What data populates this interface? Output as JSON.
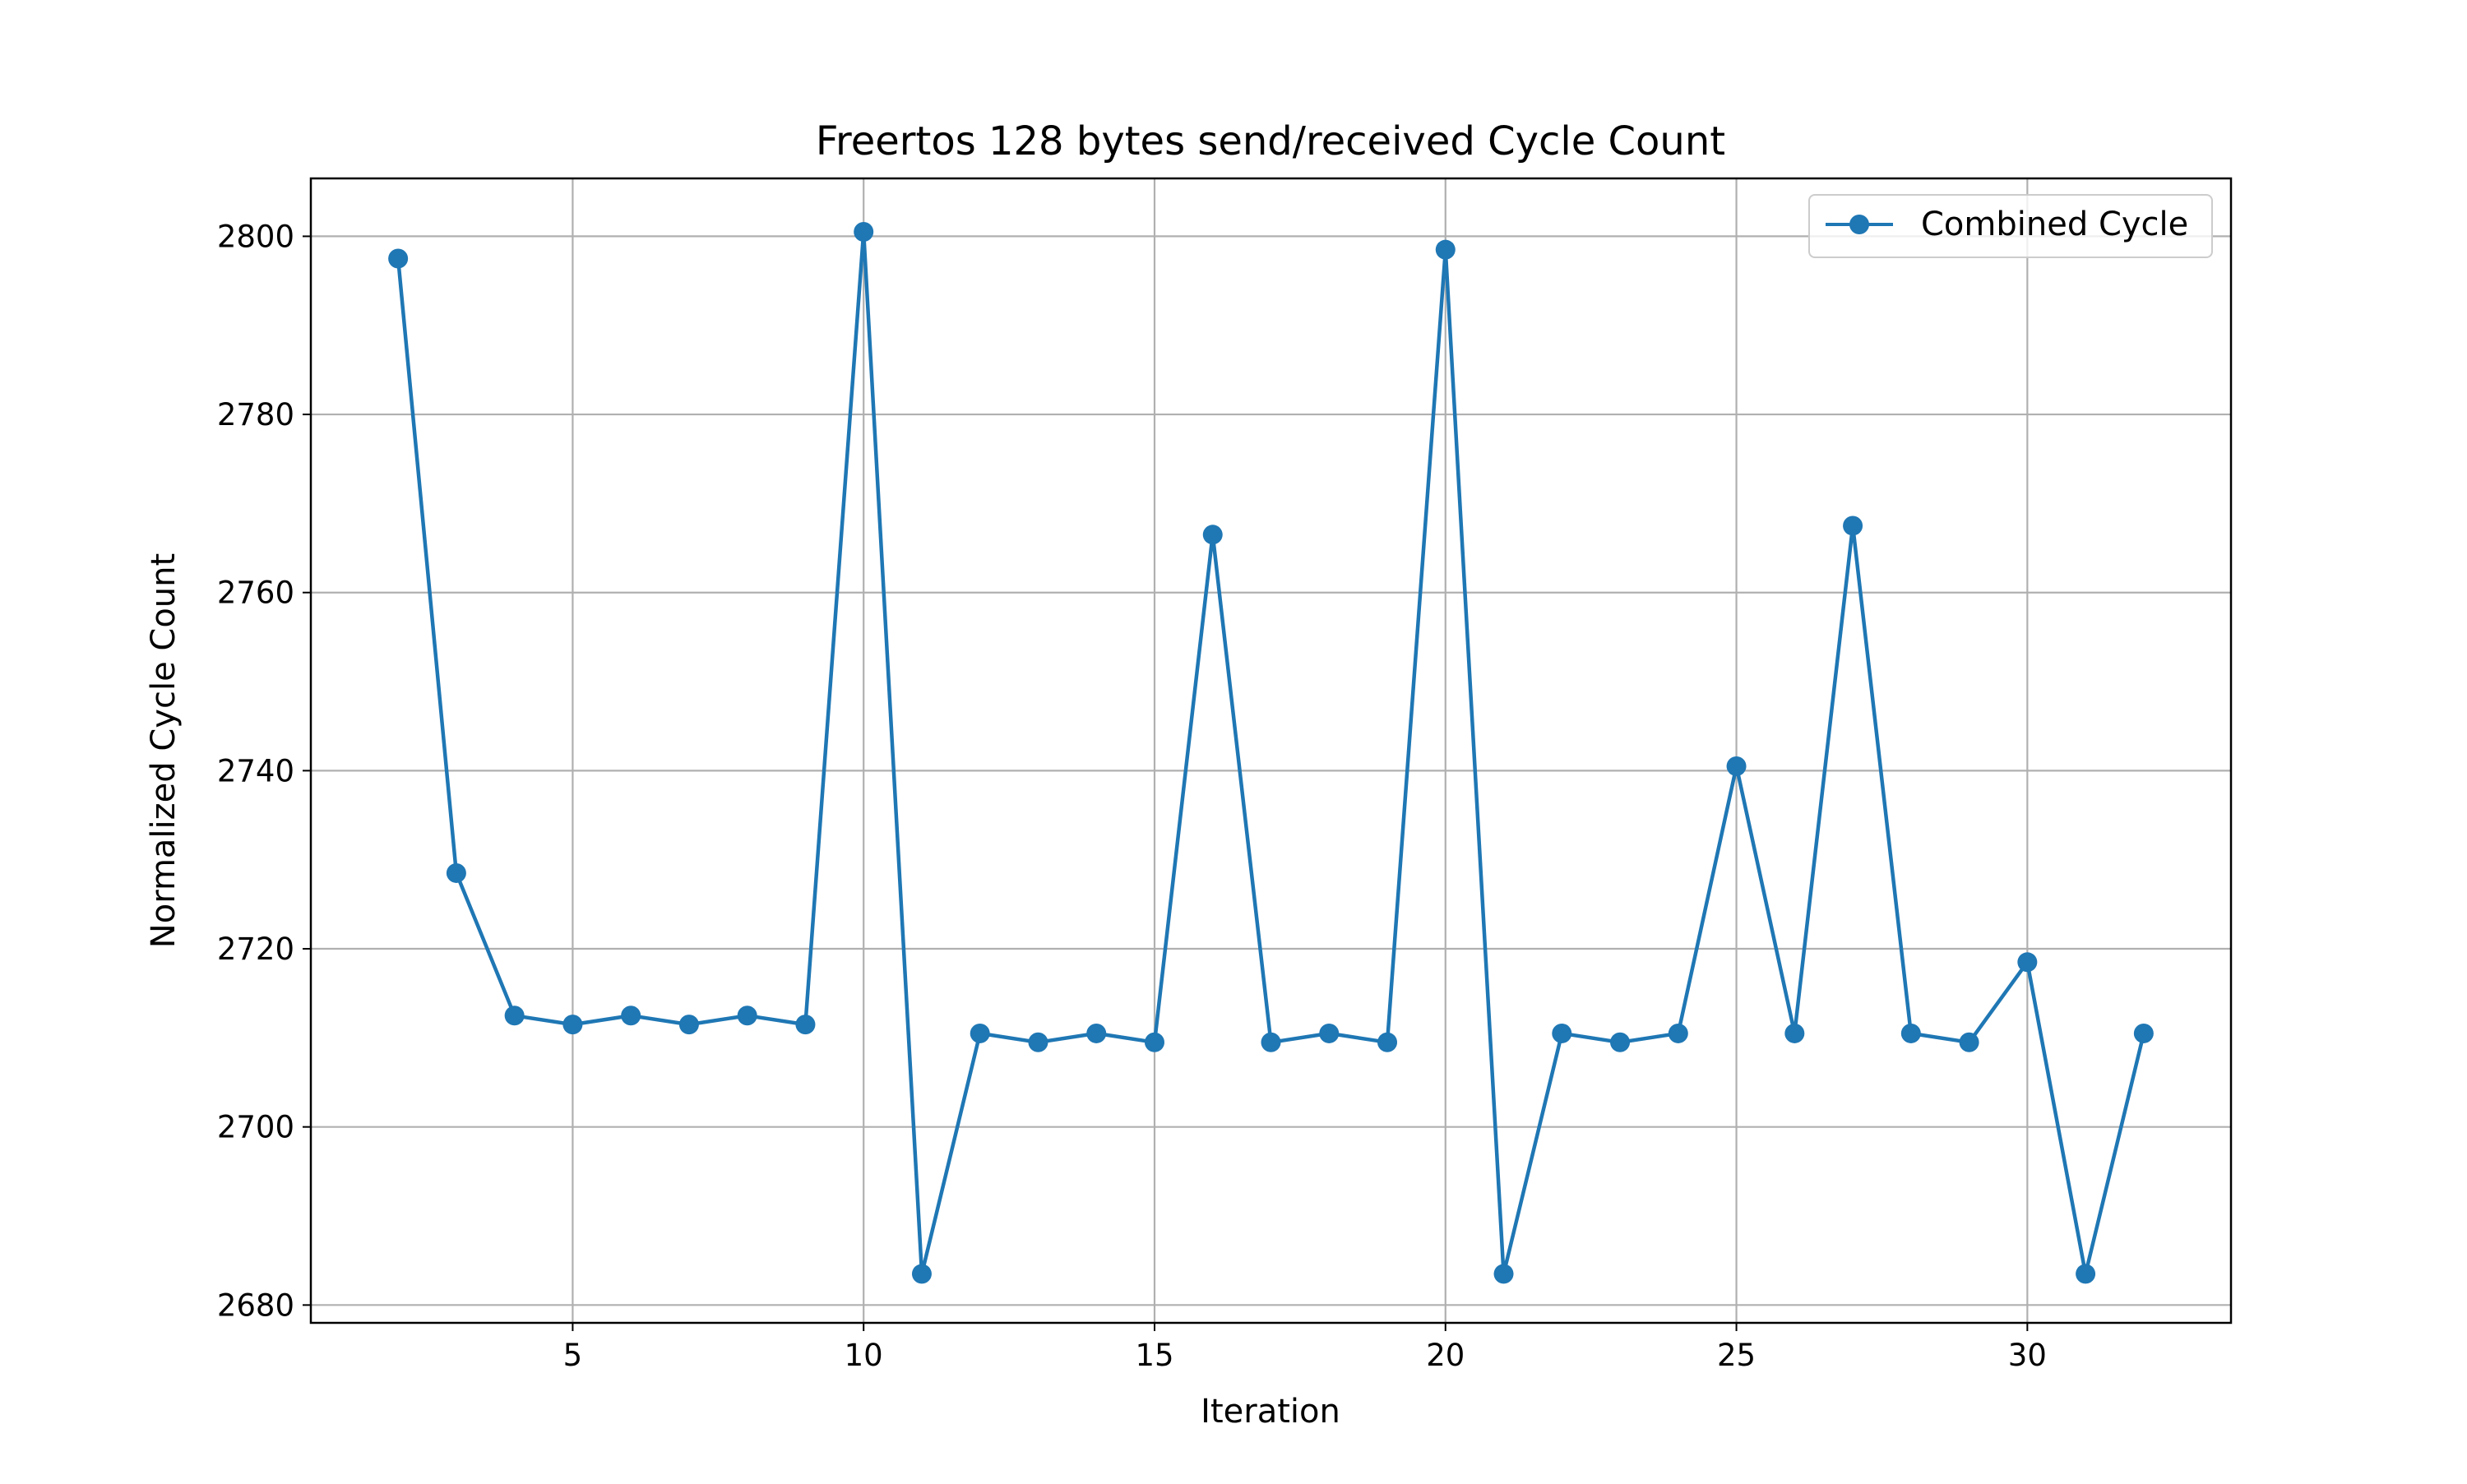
{
  "chart_data": {
    "type": "line",
    "title": "Freertos 128 bytes send/received Cycle Count",
    "xlabel": "Iteration",
    "ylabel": "Normalized Cycle Count",
    "xlim": [
      0.5,
      33.5
    ],
    "ylim": [
      2678,
      2806.5
    ],
    "xticks": [
      5,
      10,
      15,
      20,
      25,
      30
    ],
    "yticks": [
      2680,
      2700,
      2720,
      2740,
      2760,
      2780,
      2800
    ],
    "grid": true,
    "legend_position": "upper right",
    "series": [
      {
        "name": "Combined Cycle",
        "color": "#1f77b4",
        "marker": "circle",
        "x": [
          2,
          3,
          4,
          5,
          6,
          7,
          8,
          9,
          10,
          11,
          12,
          13,
          14,
          15,
          16,
          17,
          18,
          19,
          20,
          21,
          22,
          23,
          24,
          25,
          26,
          27,
          28,
          29,
          30,
          31,
          32
        ],
        "y": [
          2797.5,
          2728.5,
          2712.5,
          2711.5,
          2712.5,
          2711.5,
          2712.5,
          2711.5,
          2800.5,
          2683.5,
          2710.5,
          2709.5,
          2710.5,
          2709.5,
          2766.5,
          2709.5,
          2710.5,
          2709.5,
          2798.5,
          2683.5,
          2710.5,
          2709.5,
          2710.5,
          2740.5,
          2710.5,
          2767.5,
          2710.5,
          2709.5,
          2718.5,
          2683.5,
          2710.5
        ]
      }
    ]
  }
}
